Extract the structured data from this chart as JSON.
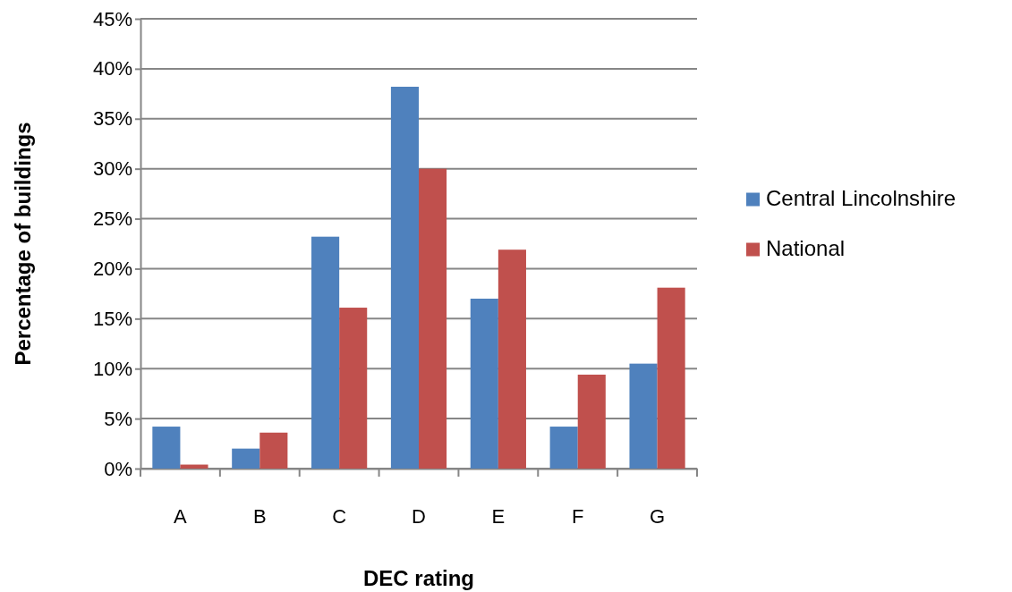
{
  "chart_data": {
    "type": "bar",
    "xlabel": "DEC rating",
    "ylabel": "Percentage of buildings",
    "categories": [
      "A",
      "B",
      "C",
      "D",
      "E",
      "F",
      "G"
    ],
    "series": [
      {
        "name": "Central Lincolnshire",
        "color": "#4f81bd",
        "values": [
          4.2,
          2.0,
          23.2,
          38.2,
          17.0,
          4.2,
          10.5
        ]
      },
      {
        "name": "National",
        "color": "#c0504d",
        "values": [
          0.4,
          3.6,
          16.1,
          30.0,
          21.9,
          9.4,
          18.1
        ]
      }
    ],
    "ylim": [
      0,
      45
    ],
    "yticks": [
      {
        "value": 0,
        "label": "0%"
      },
      {
        "value": 5,
        "label": "5%"
      },
      {
        "value": 10,
        "label": "10%"
      },
      {
        "value": 15,
        "label": "15%"
      },
      {
        "value": 20,
        "label": "20%"
      },
      {
        "value": 25,
        "label": "25%"
      },
      {
        "value": 30,
        "label": "30%"
      },
      {
        "value": 35,
        "label": "35%"
      },
      {
        "value": 40,
        "label": "40%"
      },
      {
        "value": 45,
        "label": "45%"
      }
    ],
    "grid": "y",
    "legend": "right"
  }
}
